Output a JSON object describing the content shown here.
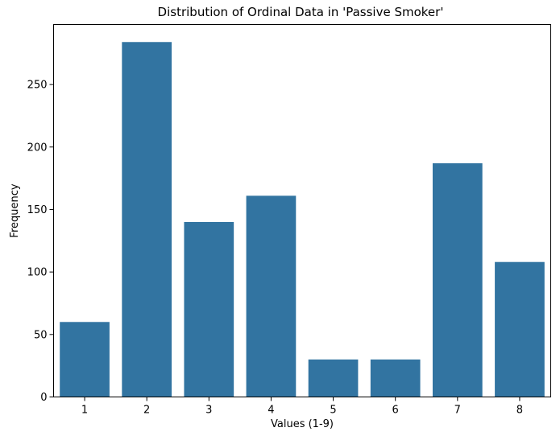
{
  "chart_data": {
    "type": "bar",
    "title": "Distribution of Ordinal Data in 'Passive Smoker'",
    "xlabel": "Values (1-9)",
    "ylabel": "Frequency",
    "categories": [
      "1",
      "2",
      "3",
      "4",
      "5",
      "6",
      "7",
      "8"
    ],
    "values": [
      60,
      284,
      140,
      161,
      30,
      30,
      187,
      108
    ],
    "ylim": [
      0,
      298
    ],
    "yticks": [
      0,
      50,
      100,
      150,
      200,
      250
    ],
    "grid": false,
    "bar_color": "#3274a1"
  }
}
